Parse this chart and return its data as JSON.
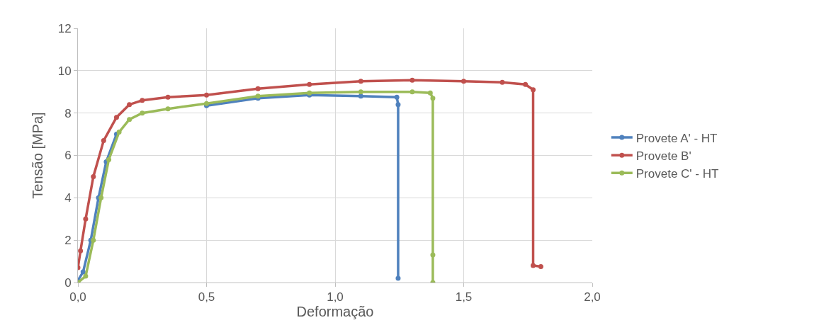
{
  "chart_data": {
    "type": "line",
    "xlabel": "Deformação",
    "ylabel": "Tensão [MPa]",
    "xlim": [
      0,
      2
    ],
    "ylim": [
      0,
      12
    ],
    "xticks": [
      {
        "value": 0,
        "label": "0,0"
      },
      {
        "value": 0.5,
        "label": "0,5"
      },
      {
        "value": 1,
        "label": "1,0"
      },
      {
        "value": 1.5,
        "label": "1,5"
      },
      {
        "value": 2,
        "label": "2,0"
      }
    ],
    "yticks": [
      0,
      2,
      4,
      6,
      8,
      10,
      12
    ],
    "grid": true,
    "legend": "right",
    "marker": "circle",
    "line_style": "solid",
    "series": [
      {
        "name": "Provete A' - HT",
        "color": "#4f81bd",
        "x": [
          0,
          0.02,
          0.05,
          0.08,
          0.11,
          0.15,
          0.2,
          0.25,
          0.35,
          0.5,
          0.7,
          0.9,
          1.1,
          1.24,
          1.245,
          1.245
        ],
        "values": [
          0.1,
          0.5,
          2,
          4,
          5.7,
          7,
          null,
          null,
          null,
          8.35,
          8.7,
          8.85,
          8.8,
          8.75,
          8.4,
          0.2
        ]
      },
      {
        "name": "Provete B'",
        "color": "#c0504d",
        "x": [
          0,
          0.01,
          0.03,
          0.06,
          0.1,
          0.15,
          0.2,
          0.25,
          0.35,
          0.5,
          0.7,
          0.9,
          1.1,
          1.3,
          1.5,
          1.65,
          1.74,
          1.77,
          1.77,
          1.8
        ],
        "values": [
          0.7,
          1.5,
          3,
          5,
          6.7,
          7.8,
          8.4,
          8.6,
          8.75,
          8.85,
          9.15,
          9.35,
          9.5,
          9.55,
          9.5,
          9.45,
          9.35,
          9.1,
          0.8,
          0.75
        ]
      },
      {
        "name": "Provete C' - HT",
        "color": "#9bbb59",
        "x": [
          0,
          0.03,
          0.06,
          0.09,
          0.12,
          0.16,
          0.2,
          0.25,
          0.35,
          0.5,
          0.7,
          0.9,
          1.1,
          1.3,
          1.37,
          1.38,
          1.38,
          1.38
        ],
        "values": [
          0,
          0.3,
          2,
          4,
          5.8,
          7.1,
          7.7,
          8.0,
          8.2,
          8.45,
          8.8,
          8.95,
          9.0,
          9.0,
          8.95,
          8.7,
          1.3,
          0
        ]
      }
    ]
  }
}
